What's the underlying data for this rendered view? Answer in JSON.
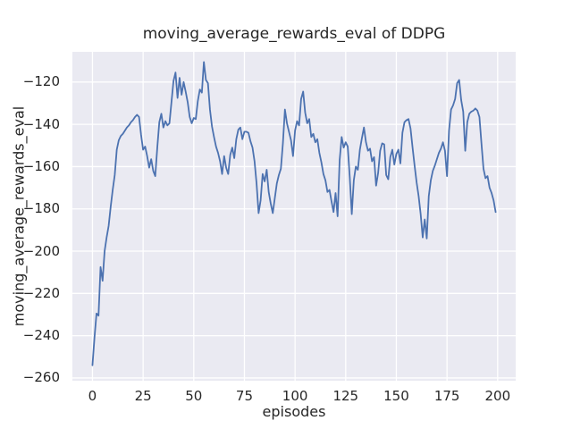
{
  "title": "moving_average_rewards_eval of DDPG",
  "colors": {
    "figure_background": "#ffffff",
    "plot_background": "#eaeaf2",
    "gridline": "#ffffff",
    "line": "#4c72b0",
    "text": "#262626"
  },
  "chart_data": {
    "type": "line",
    "title": "moving_average_rewards_eval of DDPG",
    "xlabel": "episodes",
    "ylabel": "moving_average_rewards_eval",
    "grid": true,
    "legend": "none",
    "xlim": [
      -9.9,
      208.9
    ],
    "ylim": [
      -261.3,
      -105.7
    ],
    "x_ticks": [
      0,
      25,
      50,
      75,
      100,
      125,
      150,
      175,
      200
    ],
    "x_tick_labels": [
      "0",
      "25",
      "50",
      "75",
      "100",
      "125",
      "150",
      "175",
      "200"
    ],
    "y_ticks": [
      -120,
      -140,
      -160,
      -180,
      -200,
      -220,
      -240,
      -260
    ],
    "y_tick_labels": [
      "−120",
      "−140",
      "−160",
      "−180",
      "−200",
      "−220",
      "−240",
      "−260"
    ],
    "x_start": 0,
    "x_step": 1,
    "series": [
      {
        "name": "moving_average_rewards_eval",
        "color": "#4c72b0",
        "y": [
          -254,
          -241,
          -229.5,
          -230.5,
          -207.5,
          -214,
          -200,
          -193.5,
          -188,
          -179,
          -171,
          -164,
          -152,
          -147.5,
          -145.5,
          -144.5,
          -143,
          -141.5,
          -140.5,
          -139,
          -138,
          -136.5,
          -135.5,
          -136.5,
          -145,
          -152,
          -150.5,
          -155,
          -160.5,
          -156.5,
          -162,
          -164.5,
          -151,
          -139,
          -135,
          -141.5,
          -138.5,
          -140.5,
          -139.5,
          -129.5,
          -119.5,
          -115.5,
          -127.5,
          -118,
          -126,
          -120,
          -124.5,
          -129.5,
          -136.5,
          -139.5,
          -137,
          -137.5,
          -129,
          -123.5,
          -125,
          -110.5,
          -119,
          -120.5,
          -133,
          -141,
          -146,
          -150.5,
          -153.5,
          -157.5,
          -163.5,
          -155,
          -160.5,
          -163.5,
          -154.5,
          -151,
          -156,
          -147,
          -142.5,
          -141.5,
          -147,
          -143.5,
          -143.5,
          -144,
          -148,
          -151,
          -157.5,
          -168,
          -182,
          -176,
          -163.5,
          -167,
          -161.5,
          -172,
          -177.5,
          -182,
          -175,
          -168,
          -164,
          -161,
          -149,
          -133,
          -139.5,
          -143.5,
          -147.5,
          -155,
          -143,
          -138.5,
          -140.5,
          -128,
          -124.5,
          -134.5,
          -139.5,
          -137.5,
          -146,
          -144.5,
          -148.5,
          -147,
          -153.5,
          -158,
          -163.5,
          -166.5,
          -172,
          -171,
          -176.5,
          -181.5,
          -172.5,
          -183.5,
          -157,
          -146,
          -151,
          -148.5,
          -150.5,
          -165,
          -182.5,
          -166.5,
          -160,
          -161.5,
          -152,
          -146.5,
          -141.5,
          -148.5,
          -152.5,
          -151.5,
          -157.5,
          -155.5,
          -169,
          -163,
          -152.5,
          -149,
          -149.5,
          -164,
          -166,
          -155.5,
          -152,
          -159,
          -154,
          -152,
          -158.5,
          -144,
          -139,
          -138,
          -137.5,
          -142,
          -151,
          -159.5,
          -167.5,
          -174,
          -182.5,
          -193.5,
          -185,
          -194,
          -174,
          -166.5,
          -162,
          -159.5,
          -156.5,
          -153.5,
          -151.5,
          -148.5,
          -152.5,
          -164.5,
          -143,
          -133,
          -131,
          -128,
          -120.5,
          -119,
          -128.5,
          -134,
          -152.5,
          -139,
          -135,
          -134,
          -133.5,
          -132.5,
          -133.5,
          -136.5,
          -149,
          -161,
          -165.5,
          -164.5,
          -170,
          -172.5,
          -176,
          -181.5
        ]
      }
    ]
  }
}
